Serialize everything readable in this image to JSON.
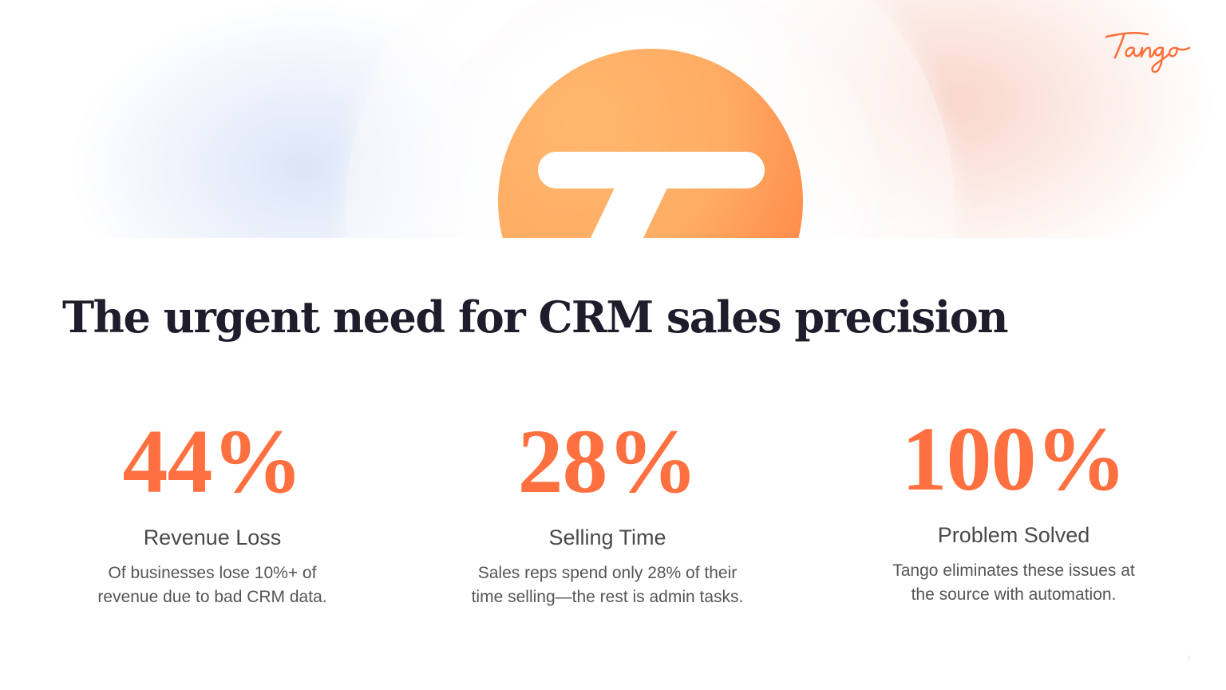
{
  "brand": {
    "name": "Tango",
    "color": "#ff6f3a"
  },
  "slide": {
    "title": "The urgent need for CRM sales precision",
    "page_number": "7"
  },
  "stats": [
    {
      "value": "44%",
      "label": "Revenue Loss",
      "description": [
        "Of businesses lose 10%+ of",
        "revenue due to bad CRM data."
      ]
    },
    {
      "value": "28%",
      "label": "Selling Time",
      "description": [
        "Sales reps spend only 28% of their",
        "time selling—the rest is admin tasks."
      ]
    },
    {
      "value": "100%",
      "label": "Problem Solved",
      "description": [
        "Tango eliminates these issues at",
        "the source with automation."
      ]
    }
  ],
  "colors": {
    "accent": "#ff7040",
    "title": "#1f1c2c",
    "label": "#4a4a4a",
    "body": "#555555"
  }
}
